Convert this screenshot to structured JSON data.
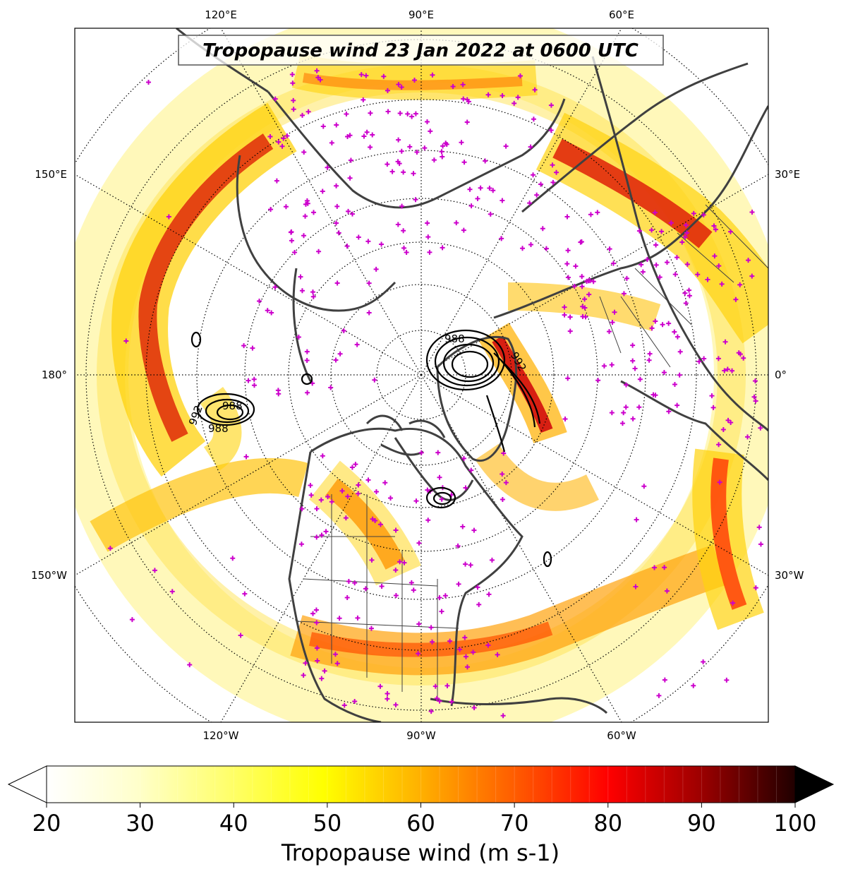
{
  "title": "Tropopause wind 23 Jan 2022 at 0600 UTC",
  "colorbar": {
    "label": "Tropopause wind (m s-1)",
    "ticks": [
      "20",
      "30",
      "40",
      "50",
      "60",
      "70",
      "80",
      "90",
      "100"
    ],
    "min": 20,
    "max": 100,
    "extend": "both",
    "colormap": "hot_r"
  },
  "map": {
    "projection": "north-polar-stereographic",
    "center": "North Pole",
    "longitude_labels": {
      "top": [
        "120°E",
        "90°E",
        "60°E"
      ],
      "left": [
        "150°E",
        "180°",
        "150°W"
      ],
      "right": [
        "30°E",
        "0°",
        "30°W"
      ],
      "bottom": [
        "120°W",
        "90°W",
        "60°W"
      ]
    },
    "gridlines": "dotted",
    "contour_labels": [
      "992",
      "988",
      "988",
      "992",
      "988"
    ],
    "marker_color": "#cc00cc",
    "coastline_color": "#404040"
  }
}
